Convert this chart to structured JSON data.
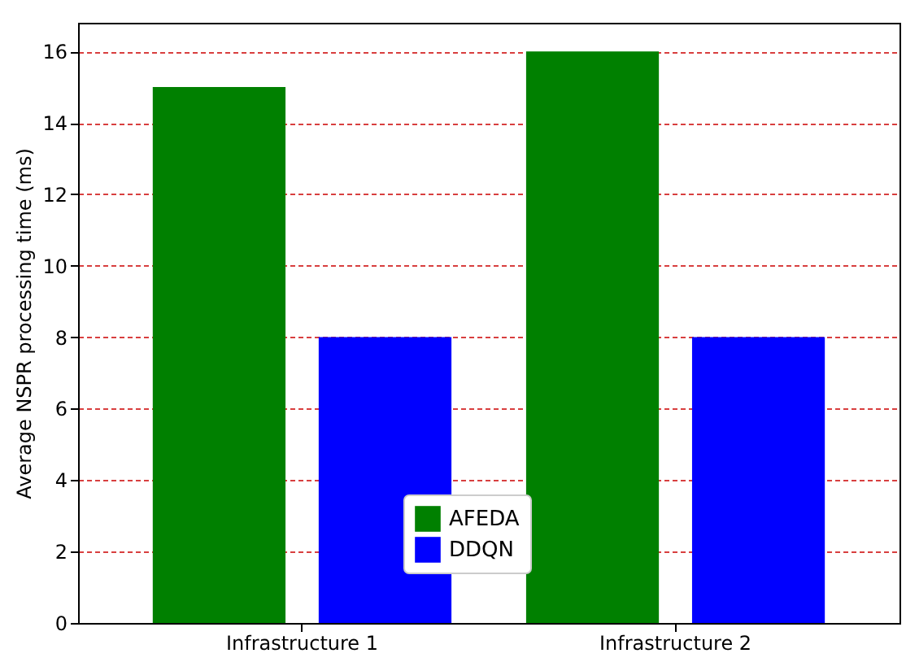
{
  "chart_data": {
    "type": "bar",
    "ylabel": "Average NSPR processing time (ms)",
    "categories": [
      "Infrastructure 1",
      "Infrastructure 2"
    ],
    "series": [
      {
        "name": "AFEDA",
        "color": "#008000",
        "values": [
          15,
          16
        ]
      },
      {
        "name": "DDQN",
        "color": "#0000ff",
        "values": [
          8,
          8
        ]
      }
    ],
    "ylim": [
      0,
      16.8
    ],
    "yticks": [
      0,
      2,
      4,
      6,
      8,
      10,
      12,
      14,
      16
    ],
    "grid": "y",
    "legend": "bottom"
  }
}
